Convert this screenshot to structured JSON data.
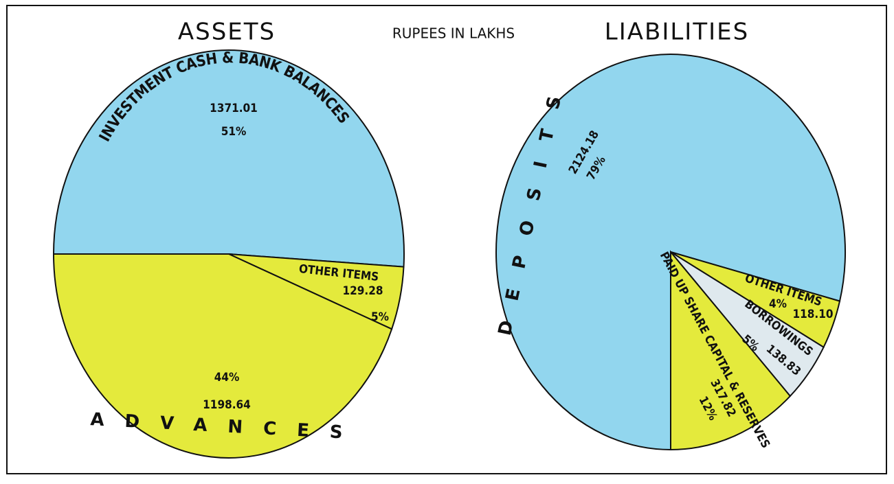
{
  "caption": "RUPEES IN LAKHS",
  "chart_data": [
    {
      "type": "pie",
      "title": "ASSETS",
      "categories": [
        "INVESTMENT CASH & BANK BALANCES",
        "OTHER ITEMS",
        "ADVANCES"
      ],
      "values": [
        51,
        5,
        44
      ],
      "value_labels": [
        "51%",
        "5%",
        "44%"
      ],
      "amounts": [
        "1371.01",
        "129.28",
        "1198.64"
      ],
      "colors": [
        "#92d6ee",
        "#e4ea3c",
        "#e4ea3c"
      ]
    },
    {
      "type": "pie",
      "title": "LIABILITIES",
      "categories": [
        "DEPOSITS",
        "OTHER ITEMS",
        "BORROWINGS",
        "PAID UP SHARE CAPITAL & RESERVES"
      ],
      "values": [
        79,
        4,
        5,
        12
      ],
      "value_labels": [
        "79%",
        "4%",
        "5%",
        "12%"
      ],
      "amounts": [
        "2124.18",
        "118.10",
        "138.83",
        "317.82"
      ],
      "colors": [
        "#92d6ee",
        "#e4ea3c",
        "#dfe9ee",
        "#e4ea3c"
      ]
    }
  ]
}
